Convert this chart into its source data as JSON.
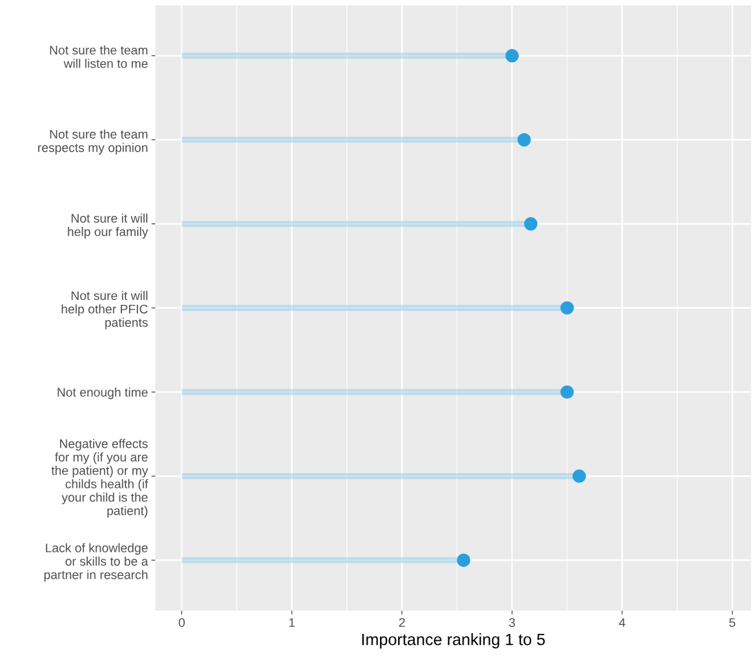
{
  "chart_data": {
    "type": "lollipop",
    "orientation": "horizontal",
    "xlabel": "Importance ranking 1 to 5",
    "categories": [
      "Not sure the team\nwill listen to me",
      "Not sure the team\nrespects my opinion",
      "Not sure it will\nhelp our family",
      "Not sure it will\nhelp other PFIC\npatients",
      "Not enough time",
      "Negative effects\nfor my (if you are\nthe patient) or my\nchilds health (if\nyour child is the\npatient)",
      "Lack of knowledge\nor skills to be a\npartner in research"
    ],
    "values": [
      3.0,
      3.11,
      3.17,
      3.5,
      3.5,
      3.61,
      2.56
    ],
    "color": "#2a9fde",
    "xlim": [
      -0.24,
      5.17
    ],
    "xticks": [
      0,
      1,
      2,
      3,
      4,
      5
    ],
    "grid": true,
    "marker": "circle"
  }
}
